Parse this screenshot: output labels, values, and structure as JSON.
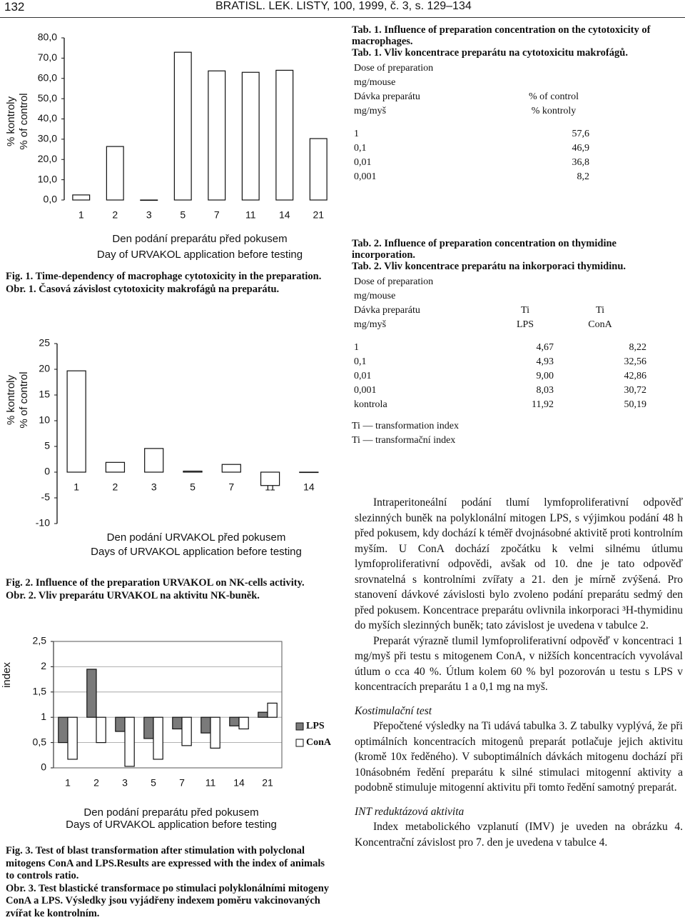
{
  "header": {
    "page": "132",
    "journal": "BRATISL. LEK. LISTY, 100, 1999, č. 3, s. 129–134"
  },
  "chart_data": [
    {
      "type": "bar",
      "y_label": [
        "% kontroly",
        "% of control"
      ],
      "x_label": [
        "Den podání preparátu před pokusem",
        "Day of URVAKOL application before testing"
      ],
      "categories": [
        "1",
        "2",
        "3",
        "5",
        "7",
        "11",
        "14",
        "21"
      ],
      "values": [
        2.5,
        26.4,
        0,
        72.9,
        63.7,
        63,
        64,
        30.3
      ],
      "color": "#ffffff",
      "ylim": [
        0,
        80
      ],
      "yticks": [
        {
          "value": 0,
          "label": "0,0"
        },
        {
          "value": 10,
          "label": "10,0"
        },
        {
          "value": 20,
          "label": "20,0"
        },
        {
          "value": 30,
          "label": "30,0"
        },
        {
          "value": 40,
          "label": "40,0"
        },
        {
          "value": 50,
          "label": "50,0"
        },
        {
          "value": 60,
          "label": "60,0"
        },
        {
          "value": 70,
          "label": "70,0"
        },
        {
          "value": 80,
          "label": "80,0"
        }
      ],
      "grid": false,
      "caption": [
        "Fig. 1. Time-dependency of macrophage cytotoxicity in the preparation.",
        "Obr. 1. Časová závislost cytotoxicity makrofágů na preparátu."
      ]
    },
    {
      "type": "bar",
      "y_label": [
        "% kontroly",
        "% of control"
      ],
      "x_label": [
        "Den podání URVAKOL před pokusem",
        "Days of URVAKOL application before testing"
      ],
      "categories": [
        "1",
        "2",
        "3",
        "5",
        "7",
        "11",
        "14"
      ],
      "values": [
        19.7,
        1.9,
        4.6,
        0.2,
        1.5,
        -2.6,
        0
      ],
      "color": "#ffffff",
      "ylim": [
        -10,
        25
      ],
      "yticks": [
        -10,
        -5,
        0,
        5,
        10,
        15,
        20,
        25
      ],
      "grid": false,
      "caption": [
        "Fig. 2. Influence of the preparation URVAKOL on NK-cells activity.",
        "Obr. 2. Vliv preparátu URVAKOL na aktivitu NK-buněk."
      ]
    },
    {
      "type": "bar",
      "y_label": [
        "index"
      ],
      "x_label": [
        "Den podání preparátu před pokusem",
        "Days of URVAKOL application before testing"
      ],
      "categories": [
        "1",
        "2",
        "3",
        "5",
        "7",
        "11",
        "14",
        "21"
      ],
      "series": [
        {
          "name": "LPS",
          "color": "#7a7a7a",
          "values": [
            0.5,
            1.95,
            0.72,
            0.58,
            0.77,
            0.69,
            0.83,
            1.1
          ]
        },
        {
          "name": "ConA",
          "color": "#ffffff",
          "values": [
            0.17,
            0.5,
            0.03,
            0.17,
            0.44,
            0.39,
            0.77,
            1.28
          ]
        }
      ],
      "bar_base": 1,
      "ylim": [
        0,
        2.5
      ],
      "yticks": [
        0,
        {
          "value": 0.5,
          "label": "0,5"
        },
        1,
        {
          "value": 1.5,
          "label": "1,5"
        },
        2,
        {
          "value": 2.5,
          "label": "2,5"
        }
      ],
      "grid": true,
      "legend": "right",
      "caption": [
        "Fig. 3. Test of blast transformation after stimulation with polyclonal mitogens ConA and LPS.Results are expressed with the index of animals to controls ratio.",
        "Obr. 3. Test blastické transformace po stimulaci polyklonálními mitogeny ConA a LPS. Výsledky jsou vyjádřeny indexem poměru vakcinovaných zvířat ke kontrolním."
      ]
    }
  ],
  "tables": [
    {
      "title": [
        "Tab. 1. Influence of preparation concentration on the cytotoxicity of macrophages.",
        "Tab. 1. Vliv koncentrace preparátu na cytotoxicitu makrofágů."
      ],
      "columns": [
        [
          "Dose of preparation",
          "mg/mouse",
          "Dávka preparátu",
          "mg/myš"
        ],
        [
          "% of control",
          "% kontroly"
        ]
      ],
      "rows": [
        [
          "1",
          "57,6"
        ],
        [
          "0,1",
          "46,9"
        ],
        [
          "0,01",
          "36,8"
        ],
        [
          "0,001",
          "8,2"
        ]
      ]
    },
    {
      "title": [
        "Tab. 2. Influence of preparation concentration on thymidine incorporation.",
        "Tab. 2. Vliv koncentrace preparátu na inkorporaci thymidinu."
      ],
      "columns": [
        [
          "Dose of preparation",
          "mg/mouse",
          "Dávka preparátu",
          "mg/myš"
        ],
        [
          "Ti",
          "LPS"
        ],
        [
          "Ti",
          "ConA"
        ]
      ],
      "rows": [
        [
          "1",
          "4,67",
          "8,22"
        ],
        [
          "0,1",
          "4,93",
          "32,56"
        ],
        [
          "0,01",
          "9,00",
          "42,86"
        ],
        [
          "0,001",
          "8,03",
          "30,72"
        ],
        [
          "kontrola",
          "11,92",
          "50,19"
        ]
      ],
      "notes": [
        "Ti — transformation index",
        "Ti — transformační index"
      ]
    }
  ],
  "body": [
    {
      "kind": "p",
      "text": "Intraperitoneální podání tlumí lymfoproliferativní odpověď slezinných buněk na polyklonální mitogen LPS, s výjimkou podání 48 h před pokusem, kdy dochází k téměř dvojnásobné aktivitě proti kontrolním myším. U ConA dochází zpočátku k velmi silnému útlumu lymfoproliferativní odpovědi, avšak od 10. dne je tato odpověď srovnatelná s kontrolními zvířaty a 21. den je mírně zvýšená. Pro stanovení dávkové závislosti bylo zvoleno podání preparátu sedmý den před pokusem. Koncentrace preparátu ovlivnila inkorporaci ³H-thymidinu do myších slezinných buněk; tato závislost je uvedena v tabulce 2."
    },
    {
      "kind": "p",
      "text": "Preparát výrazně tlumil lymfoproliferativní odpověď v koncentraci 1 mg/myš při testu s mitogenem ConA, v nižších koncentracích vyvolával útlum o cca 40 %. Útlum kolem 60 % byl pozorován u testu s LPS v koncentracích preparátu 1 a 0,1 mg na myš."
    },
    {
      "kind": "h",
      "text": "Kostimulační test"
    },
    {
      "kind": "p",
      "text": "Přepočtené výsledky na Ti udává tabulka 3. Z tabulky vyplývá, že při optimálních koncentracích mitogenů preparát potlačuje jejich aktivitu (kromě 10x ředěného). V suboptimálních dávkách mitogenu dochází při 10násobném ředění preparátu k silné stimulaci mitogenní aktivity a podobně stimuluje mitogenní aktivitu při tomto ředění samotný preparát."
    },
    {
      "kind": "h",
      "text": "INT reduktázová aktivita"
    },
    {
      "kind": "p",
      "text": "Index metabolického vzplanutí (IMV) je uveden na obrázku 4. Koncentrační závislost pro 7. den je uvedena v tabulce 4."
    }
  ]
}
